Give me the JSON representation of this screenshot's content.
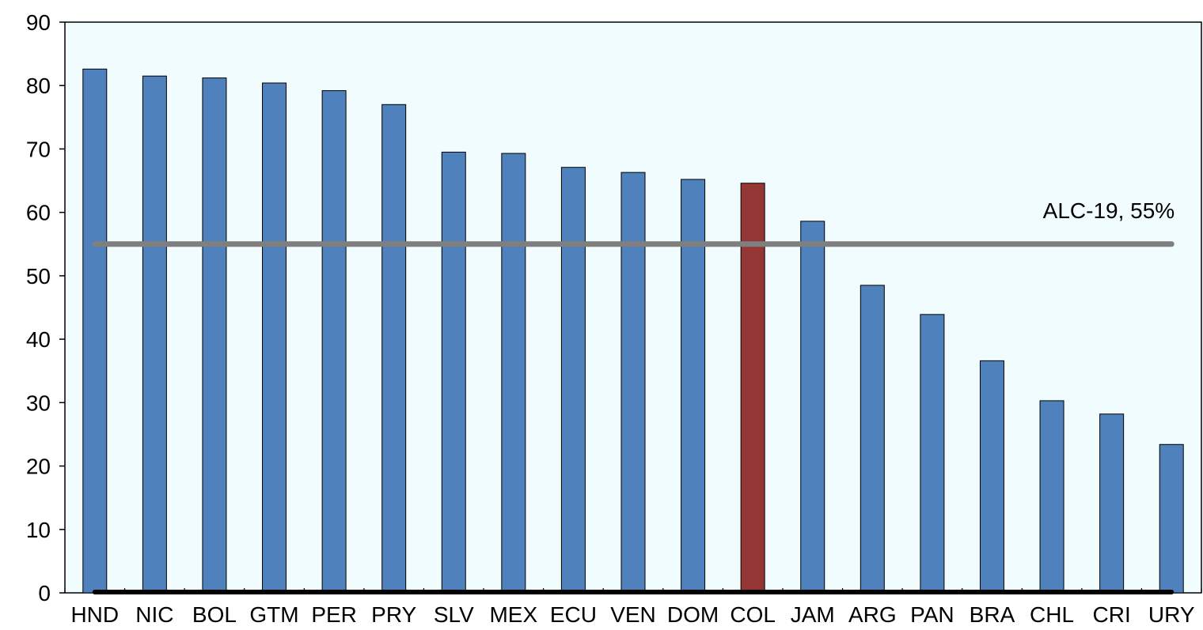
{
  "chart_data": {
    "type": "bar",
    "title": "",
    "xlabel": "",
    "ylabel": "",
    "ylim": [
      0,
      90
    ],
    "yticks": [
      0,
      10,
      20,
      30,
      40,
      50,
      60,
      70,
      80,
      90
    ],
    "grid": false,
    "categories": [
      "HND",
      "NIC",
      "BOL",
      "GTM",
      "PER",
      "PRY",
      "SLV",
      "MEX",
      "ECU",
      "VEN",
      "DOM",
      "COL",
      "JAM",
      "ARG",
      "PAN",
      "BRA",
      "CHL",
      "CRI",
      "URY"
    ],
    "values": [
      82.6,
      81.5,
      81.2,
      80.4,
      79.2,
      77.0,
      69.5,
      69.3,
      67.1,
      66.3,
      65.2,
      64.6,
      58.6,
      48.5,
      43.9,
      36.6,
      30.3,
      28.2,
      23.4
    ],
    "highlight_category": "COL",
    "bar_color": "#4f81bd",
    "highlight_color": "#943634",
    "plot_background": "#f0fcfd",
    "reference_line": {
      "label": "ALC-19, 55%",
      "value": 55,
      "color": "#7f7f7f"
    }
  }
}
